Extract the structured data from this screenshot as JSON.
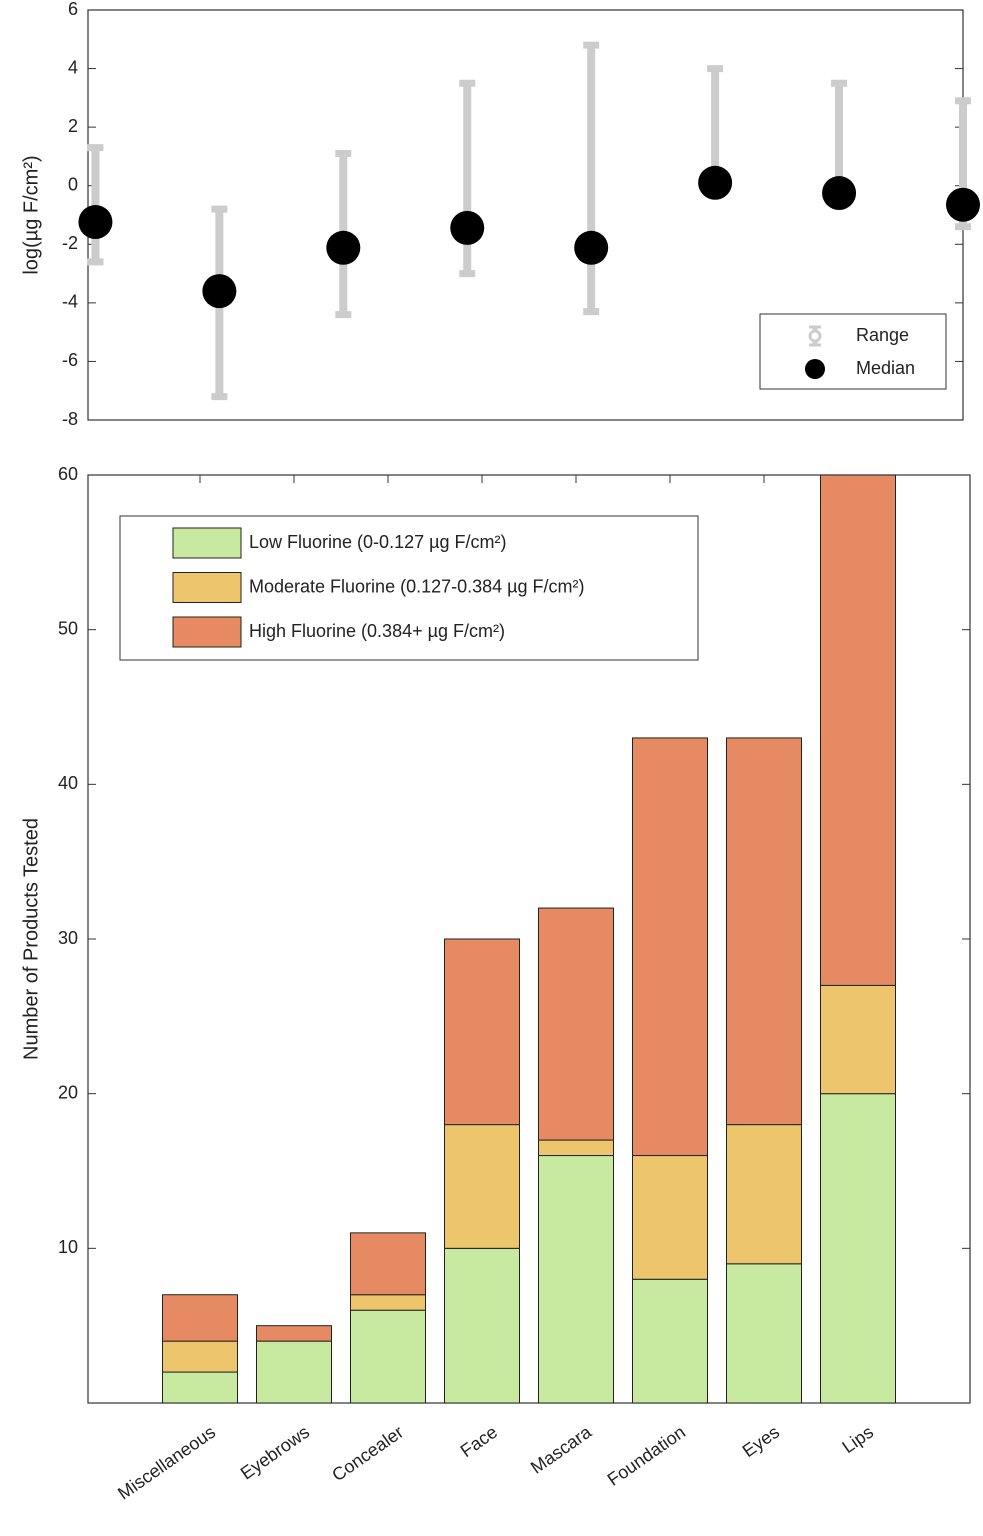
{
  "chart_data": [
    {
      "type": "errorbar",
      "ylabel": "log(µg F/cm²)",
      "x": [
        1,
        2,
        3,
        4,
        5,
        6,
        7,
        8
      ],
      "xlim": [
        0.94,
        8
      ],
      "ylim": [
        -8,
        6
      ],
      "yticks": [
        -8,
        -6,
        -4,
        -2,
        0,
        2,
        4,
        6
      ],
      "series": [
        {
          "name": "Range",
          "color": "#cccccc",
          "low": [
            -2.6,
            -7.2,
            -4.4,
            -3.0,
            -4.3,
            0.1,
            -0.3,
            -1.4
          ],
          "high": [
            1.3,
            -0.8,
            1.1,
            3.5,
            4.8,
            4.0,
            3.5,
            2.9
          ]
        },
        {
          "name": "Median",
          "color": "#000000",
          "values": [
            -1.24,
            -3.6,
            -2.12,
            -1.44,
            -2.12,
            0.1,
            -0.25,
            -0.65
          ]
        }
      ],
      "legend": "lower right"
    },
    {
      "type": "stacked_bar",
      "ylabel": "Number of Products Tested",
      "categories": [
        "Miscellaneous",
        "Eyebrows",
        "Concealer",
        "Face",
        "Mascara",
        "Foundation",
        "Eyes",
        "Lips"
      ],
      "ylim": [
        0,
        60
      ],
      "yticks": [
        10,
        20,
        30,
        40,
        50,
        60
      ],
      "series": [
        {
          "name": "Low Fluorine (0-0.127 µg F/cm²)",
          "color": "#c8eaa0",
          "values": [
            2,
            4,
            6,
            10,
            16,
            8,
            9,
            20
          ]
        },
        {
          "name": "Moderate Fluorine (0.127-0.384 µg F/cm²)",
          "color": "#ecc56c",
          "values": [
            2,
            0,
            1,
            8,
            1,
            8,
            9,
            7
          ]
        },
        {
          "name": "High Fluorine (0.384+ µg F/cm²)",
          "color": "#e68a63",
          "values": [
            3,
            1,
            4,
            12,
            15,
            27,
            25,
            33
          ]
        }
      ],
      "legend": "upper left"
    }
  ]
}
